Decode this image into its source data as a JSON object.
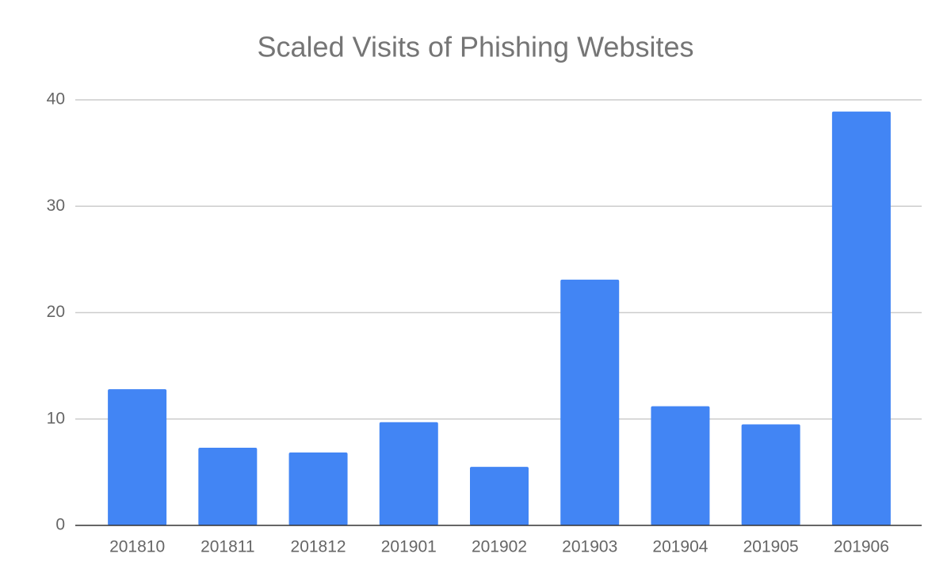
{
  "chart_data": {
    "type": "bar",
    "title": "Scaled Visits of Phishing Websites",
    "categories": [
      "201810",
      "201811",
      "201812",
      "201901",
      "201902",
      "201903",
      "201904",
      "201905",
      "201906"
    ],
    "values": [
      12.8,
      7.3,
      6.85,
      9.7,
      5.5,
      23.1,
      11.2,
      9.5,
      38.9
    ],
    "color": "#4285f4",
    "ylim": [
      0,
      40
    ],
    "yticks": [
      0,
      10,
      20,
      30,
      40
    ],
    "grid": true
  }
}
